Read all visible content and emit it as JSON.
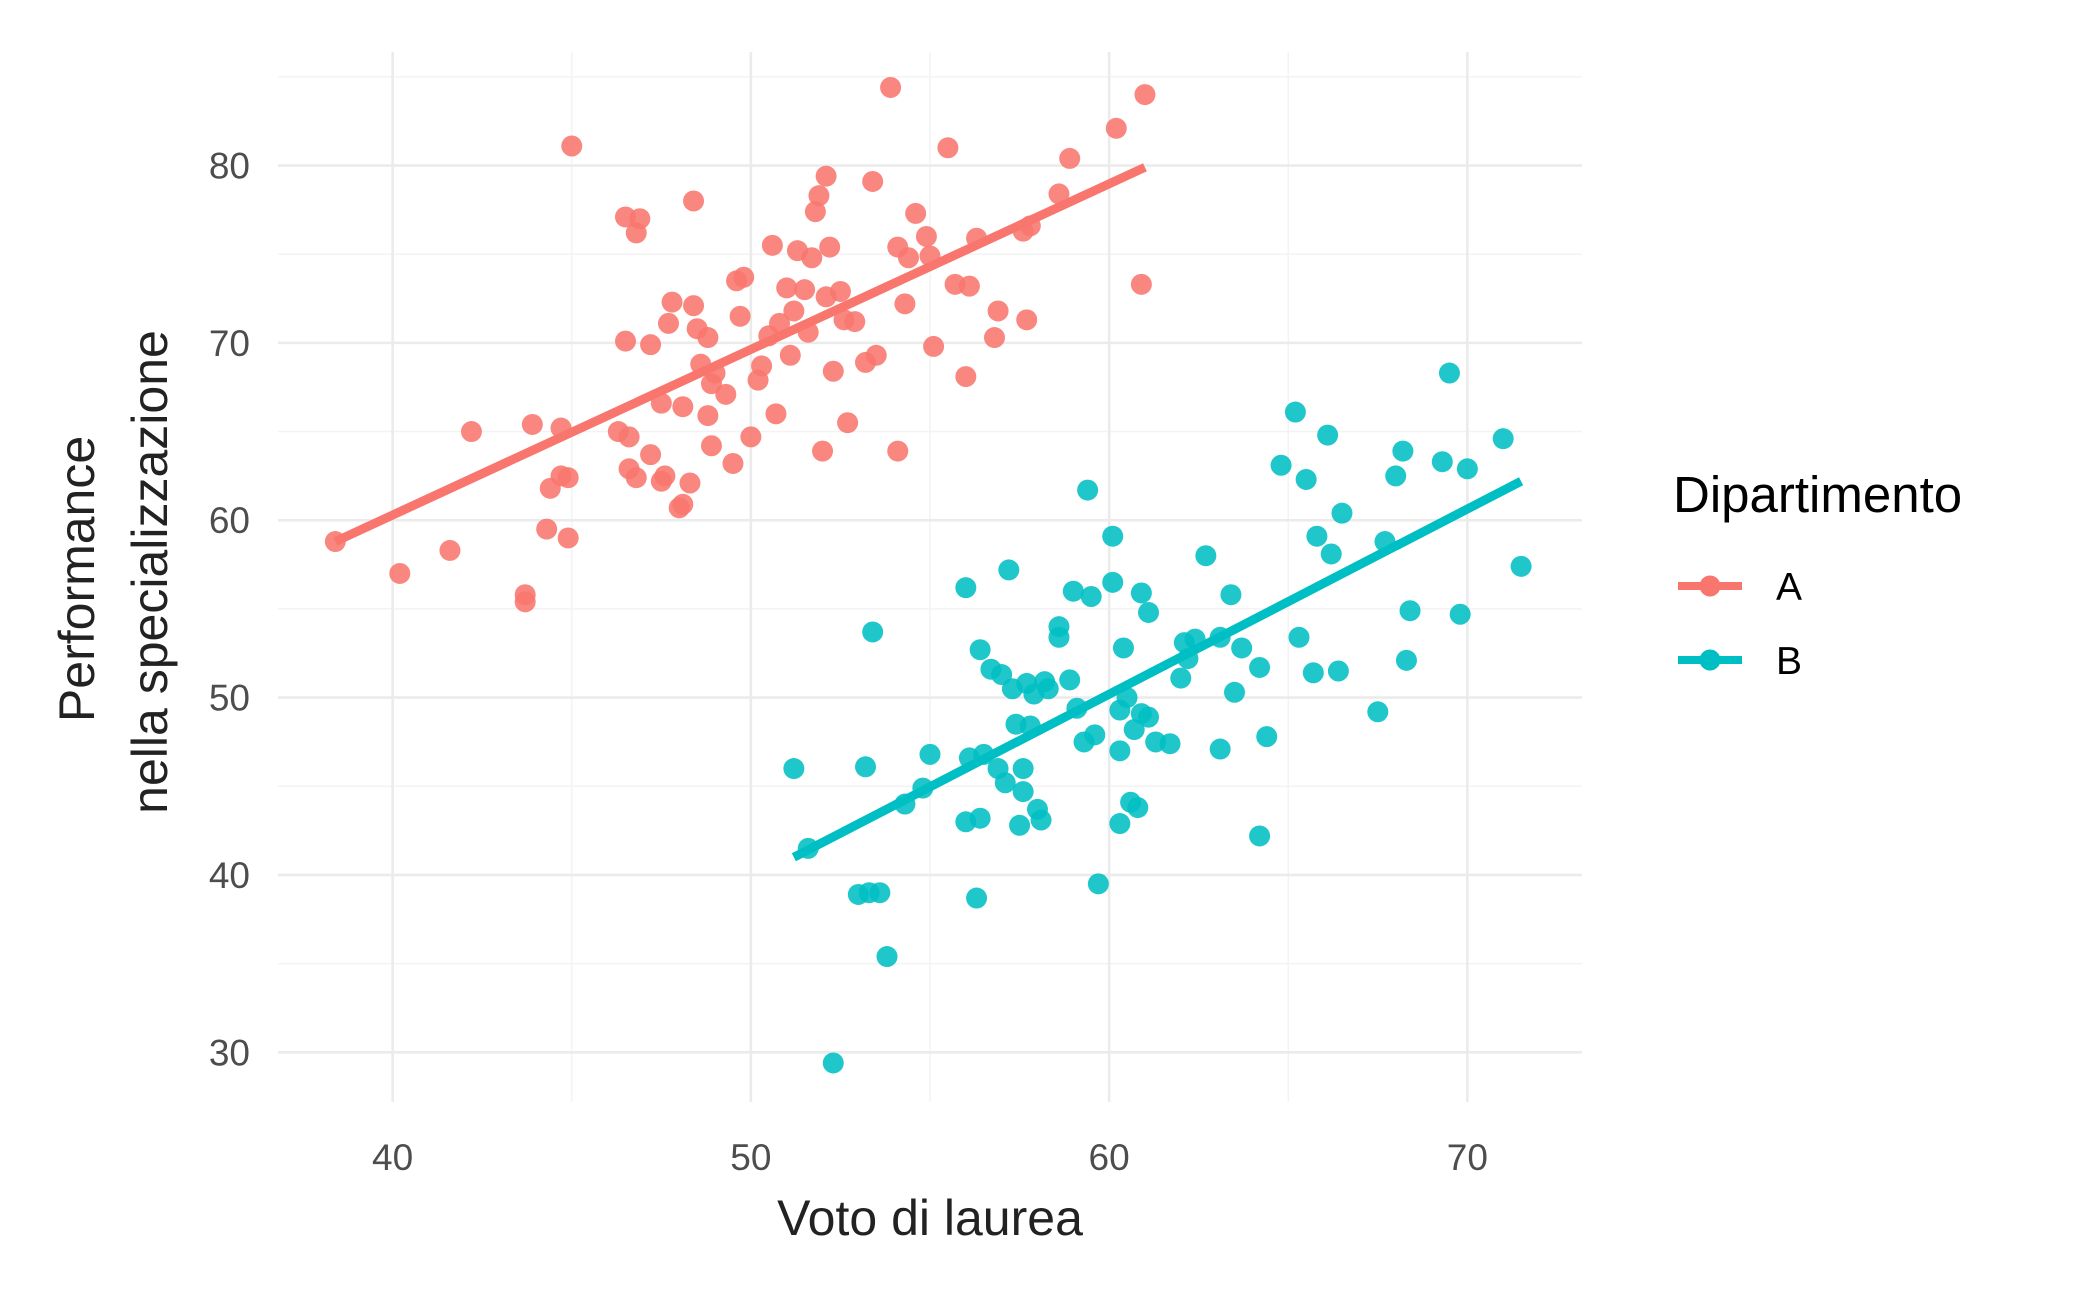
{
  "chart_data": {
    "type": "scatter",
    "xlabel": "Voto di laurea",
    "ylabel": [
      "Performance",
      "nella specializzazione"
    ],
    "xlim": [
      36.8,
      73.2
    ],
    "ylim": [
      27.2,
      86.4
    ],
    "xticks": [
      40,
      50,
      60,
      70
    ],
    "yticks": [
      30,
      40,
      50,
      60,
      70,
      80
    ],
    "grid": true,
    "legend": {
      "title": "Dipartimento",
      "position": "right"
    },
    "series": [
      {
        "name": "A",
        "color": "#F8766D",
        "points": [
          [
            38.4,
            58.8
          ],
          [
            40.2,
            57.0
          ],
          [
            41.6,
            58.3
          ],
          [
            42.2,
            65.0
          ],
          [
            43.7,
            55.8
          ],
          [
            43.7,
            55.4
          ],
          [
            43.9,
            65.4
          ],
          [
            44.3,
            59.5
          ],
          [
            44.4,
            61.8
          ],
          [
            44.7,
            62.5
          ],
          [
            44.7,
            65.2
          ],
          [
            44.9,
            62.4
          ],
          [
            44.9,
            59.0
          ],
          [
            45.0,
            81.1
          ],
          [
            46.3,
            65.0
          ],
          [
            46.5,
            77.1
          ],
          [
            46.5,
            70.1
          ],
          [
            46.6,
            62.9
          ],
          [
            46.6,
            64.7
          ],
          [
            46.8,
            62.4
          ],
          [
            46.8,
            76.2
          ],
          [
            46.9,
            77.0
          ],
          [
            47.2,
            69.9
          ],
          [
            47.2,
            63.7
          ],
          [
            47.5,
            62.2
          ],
          [
            47.5,
            66.6
          ],
          [
            47.6,
            62.5
          ],
          [
            47.7,
            71.1
          ],
          [
            47.8,
            72.3
          ],
          [
            48.0,
            60.7
          ],
          [
            48.1,
            66.4
          ],
          [
            48.1,
            60.9
          ],
          [
            48.3,
            62.1
          ],
          [
            48.4,
            72.1
          ],
          [
            48.4,
            78.0
          ],
          [
            48.5,
            70.8
          ],
          [
            48.6,
            68.8
          ],
          [
            48.8,
            70.3
          ],
          [
            48.8,
            65.9
          ],
          [
            48.9,
            67.7
          ],
          [
            48.9,
            64.2
          ],
          [
            49.0,
            68.3
          ],
          [
            49.3,
            67.1
          ],
          [
            49.5,
            63.2
          ],
          [
            49.6,
            73.5
          ],
          [
            49.7,
            71.5
          ],
          [
            49.8,
            73.7
          ],
          [
            50.0,
            64.7
          ],
          [
            50.2,
            67.9
          ],
          [
            50.3,
            68.7
          ],
          [
            50.5,
            70.4
          ],
          [
            50.6,
            75.5
          ],
          [
            50.7,
            66.0
          ],
          [
            50.8,
            71.1
          ],
          [
            51.0,
            73.1
          ],
          [
            51.1,
            69.3
          ],
          [
            51.2,
            71.8
          ],
          [
            51.3,
            75.2
          ],
          [
            51.5,
            73.0
          ],
          [
            51.6,
            70.6
          ],
          [
            51.7,
            74.8
          ],
          [
            51.8,
            77.4
          ],
          [
            51.9,
            78.3
          ],
          [
            52.0,
            63.9
          ],
          [
            52.1,
            79.4
          ],
          [
            52.1,
            72.6
          ],
          [
            52.2,
            75.4
          ],
          [
            52.3,
            68.4
          ],
          [
            52.5,
            72.9
          ],
          [
            52.6,
            71.3
          ],
          [
            52.7,
            65.5
          ],
          [
            52.9,
            71.2
          ],
          [
            53.2,
            68.9
          ],
          [
            53.4,
            79.1
          ],
          [
            53.5,
            69.3
          ],
          [
            53.9,
            84.4
          ],
          [
            54.1,
            63.9
          ],
          [
            54.1,
            75.4
          ],
          [
            54.3,
            72.2
          ],
          [
            54.4,
            74.8
          ],
          [
            54.6,
            77.3
          ],
          [
            54.9,
            76.0
          ],
          [
            55.0,
            74.9
          ],
          [
            55.1,
            69.8
          ],
          [
            55.5,
            81.0
          ],
          [
            55.7,
            73.3
          ],
          [
            56.0,
            68.1
          ],
          [
            56.1,
            73.2
          ],
          [
            56.3,
            75.9
          ],
          [
            56.8,
            70.3
          ],
          [
            56.9,
            71.8
          ],
          [
            57.6,
            76.3
          ],
          [
            57.7,
            71.3
          ],
          [
            57.8,
            76.6
          ],
          [
            58.6,
            78.4
          ],
          [
            58.9,
            80.4
          ],
          [
            60.2,
            82.1
          ],
          [
            60.9,
            73.3
          ],
          [
            61.0,
            84.0
          ]
        ],
        "trend": [
          [
            38.4,
            58.8
          ],
          [
            61.0,
            79.9
          ]
        ]
      },
      {
        "name": "B",
        "color": "#00BFC4",
        "points": [
          [
            51.2,
            46.0
          ],
          [
            51.6,
            41.5
          ],
          [
            53.0,
            38.9
          ],
          [
            53.2,
            46.1
          ],
          [
            53.3,
            39.0
          ],
          [
            53.4,
            53.7
          ],
          [
            53.6,
            39.0
          ],
          [
            53.8,
            35.4
          ],
          [
            52.3,
            29.4
          ],
          [
            54.3,
            44.0
          ],
          [
            54.8,
            44.9
          ],
          [
            55.0,
            46.8
          ],
          [
            56.0,
            56.2
          ],
          [
            56.0,
            43.0
          ],
          [
            56.1,
            46.6
          ],
          [
            56.3,
            38.7
          ],
          [
            56.4,
            52.7
          ],
          [
            56.4,
            43.2
          ],
          [
            56.5,
            46.8
          ],
          [
            56.7,
            51.6
          ],
          [
            56.9,
            46.0
          ],
          [
            57.0,
            51.3
          ],
          [
            57.1,
            45.2
          ],
          [
            57.2,
            57.2
          ],
          [
            57.3,
            50.5
          ],
          [
            57.4,
            48.5
          ],
          [
            57.5,
            42.8
          ],
          [
            57.6,
            44.7
          ],
          [
            57.6,
            46.0
          ],
          [
            57.7,
            50.8
          ],
          [
            57.8,
            48.4
          ],
          [
            57.9,
            50.2
          ],
          [
            58.0,
            43.7
          ],
          [
            58.1,
            43.1
          ],
          [
            58.2,
            50.9
          ],
          [
            58.3,
            50.5
          ],
          [
            58.6,
            54.0
          ],
          [
            58.6,
            53.4
          ],
          [
            58.9,
            51.0
          ],
          [
            59.0,
            56.0
          ],
          [
            59.1,
            49.4
          ],
          [
            59.3,
            47.5
          ],
          [
            59.4,
            61.7
          ],
          [
            59.5,
            55.7
          ],
          [
            59.6,
            47.9
          ],
          [
            59.7,
            39.5
          ],
          [
            60.1,
            59.1
          ],
          [
            60.1,
            56.5
          ],
          [
            60.3,
            49.3
          ],
          [
            60.3,
            47.0
          ],
          [
            60.3,
            42.9
          ],
          [
            60.4,
            52.8
          ],
          [
            60.5,
            50.0
          ],
          [
            60.6,
            44.1
          ],
          [
            60.7,
            48.2
          ],
          [
            60.8,
            43.8
          ],
          [
            60.9,
            55.9
          ],
          [
            60.9,
            49.1
          ],
          [
            61.1,
            48.9
          ],
          [
            61.1,
            54.8
          ],
          [
            61.3,
            47.5
          ],
          [
            61.7,
            47.4
          ],
          [
            62.0,
            51.1
          ],
          [
            62.1,
            53.1
          ],
          [
            62.2,
            52.2
          ],
          [
            62.4,
            53.3
          ],
          [
            62.7,
            58.0
          ],
          [
            63.1,
            47.1
          ],
          [
            63.1,
            53.4
          ],
          [
            63.4,
            55.8
          ],
          [
            63.5,
            50.3
          ],
          [
            63.7,
            52.8
          ],
          [
            64.2,
            51.7
          ],
          [
            64.2,
            42.2
          ],
          [
            64.4,
            47.8
          ],
          [
            64.8,
            63.1
          ],
          [
            65.2,
            66.1
          ],
          [
            65.3,
            53.4
          ],
          [
            65.5,
            62.3
          ],
          [
            65.7,
            51.4
          ],
          [
            65.8,
            59.1
          ],
          [
            66.1,
            64.8
          ],
          [
            66.2,
            58.1
          ],
          [
            66.4,
            51.5
          ],
          [
            66.5,
            60.4
          ],
          [
            67.5,
            49.2
          ],
          [
            67.7,
            58.8
          ],
          [
            68.0,
            62.5
          ],
          [
            68.2,
            63.9
          ],
          [
            68.3,
            52.1
          ],
          [
            68.4,
            54.9
          ],
          [
            69.3,
            63.3
          ],
          [
            69.5,
            68.3
          ],
          [
            69.8,
            54.7
          ],
          [
            70.0,
            62.9
          ],
          [
            71.0,
            64.6
          ],
          [
            71.5,
            57.4
          ]
        ],
        "trend": [
          [
            51.2,
            41.0
          ],
          [
            71.5,
            62.2
          ]
        ]
      }
    ]
  }
}
